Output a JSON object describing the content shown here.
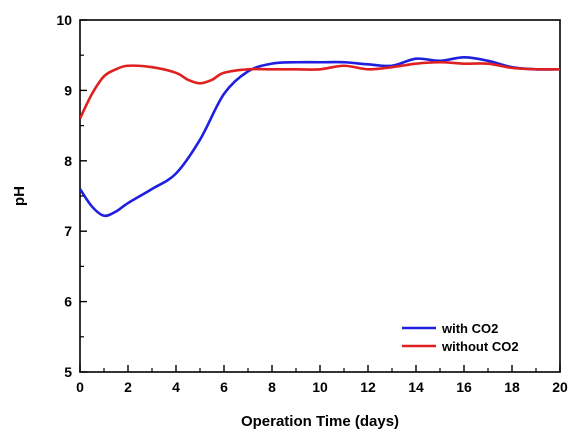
{
  "chart_data": {
    "type": "line",
    "title": "",
    "xlabel": "Operation Time (days)",
    "ylabel": "pH",
    "xlim": [
      0,
      20
    ],
    "ylim": [
      5,
      10
    ],
    "x_ticks": [
      "0",
      "2",
      "4",
      "6",
      "8",
      "10",
      "12",
      "14",
      "16",
      "18",
      "20"
    ],
    "y_ticks": [
      "5",
      "6",
      "7",
      "8",
      "9",
      "10"
    ],
    "grid": false,
    "legend_position": "bottom-right",
    "series": [
      {
        "name": "with CO2",
        "color": "#1f1fe0",
        "points": [
          [
            0,
            7.6
          ],
          [
            0.5,
            7.35
          ],
          [
            1,
            7.22
          ],
          [
            1.5,
            7.28
          ],
          [
            2,
            7.4
          ],
          [
            3,
            7.6
          ],
          [
            4,
            7.82
          ],
          [
            5,
            8.3
          ],
          [
            6,
            8.95
          ],
          [
            7,
            9.27
          ],
          [
            8,
            9.38
          ],
          [
            9,
            9.4
          ],
          [
            10,
            9.4
          ],
          [
            11,
            9.4
          ],
          [
            12,
            9.37
          ],
          [
            13,
            9.35
          ],
          [
            14,
            9.45
          ],
          [
            15,
            9.42
          ],
          [
            16,
            9.47
          ],
          [
            17,
            9.42
          ],
          [
            18,
            9.33
          ],
          [
            19,
            9.3
          ],
          [
            20,
            9.3
          ]
        ]
      },
      {
        "name": "without CO2",
        "color": "#e02020",
        "points": [
          [
            0,
            8.6
          ],
          [
            0.5,
            8.95
          ],
          [
            1,
            9.2
          ],
          [
            1.5,
            9.3
          ],
          [
            2,
            9.35
          ],
          [
            3,
            9.33
          ],
          [
            4,
            9.25
          ],
          [
            4.5,
            9.15
          ],
          [
            5,
            9.1
          ],
          [
            5.5,
            9.15
          ],
          [
            6,
            9.25
          ],
          [
            7,
            9.3
          ],
          [
            8,
            9.3
          ],
          [
            9,
            9.3
          ],
          [
            10,
            9.3
          ],
          [
            11,
            9.35
          ],
          [
            12,
            9.3
          ],
          [
            13,
            9.33
          ],
          [
            14,
            9.38
          ],
          [
            15,
            9.4
          ],
          [
            16,
            9.38
          ],
          [
            17,
            9.38
          ],
          [
            18,
            9.32
          ],
          [
            19,
            9.3
          ],
          [
            20,
            9.3
          ]
        ]
      }
    ]
  }
}
